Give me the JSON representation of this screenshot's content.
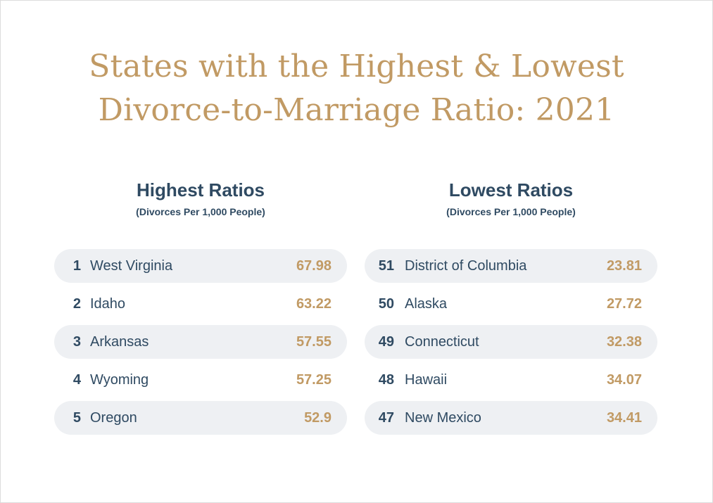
{
  "title": {
    "line1": "States with the Highest & Lowest",
    "line2": "Divorce-to-Marriage Ratio: 2021"
  },
  "highest": {
    "heading": "Highest Ratios",
    "subheading": "(Divorces Per 1,000 People)",
    "rows": [
      {
        "rank": "1",
        "state": "West Virginia",
        "value": "67.98"
      },
      {
        "rank": "2",
        "state": "Idaho",
        "value": "63.22"
      },
      {
        "rank": "3",
        "state": "Arkansas",
        "value": "57.55"
      },
      {
        "rank": "4",
        "state": "Wyoming",
        "value": "57.25"
      },
      {
        "rank": "5",
        "state": "Oregon",
        "value": "52.9"
      }
    ]
  },
  "lowest": {
    "heading": "Lowest Ratios",
    "subheading": "(Divorces Per 1,000 People)",
    "rows": [
      {
        "rank": "51",
        "state": "District of Columbia",
        "value": "23.81"
      },
      {
        "rank": "50",
        "state": "Alaska",
        "value": "27.72"
      },
      {
        "rank": "49",
        "state": "Connecticut",
        "value": "32.38"
      },
      {
        "rank": "48",
        "state": "Hawaii",
        "value": "34.07"
      },
      {
        "rank": "47",
        "state": "New Mexico",
        "value": "34.41"
      }
    ]
  },
  "colors": {
    "accent_gold": "#c19a64",
    "text_navy": "#2f4a62",
    "row_shade": "#eef0f3"
  }
}
